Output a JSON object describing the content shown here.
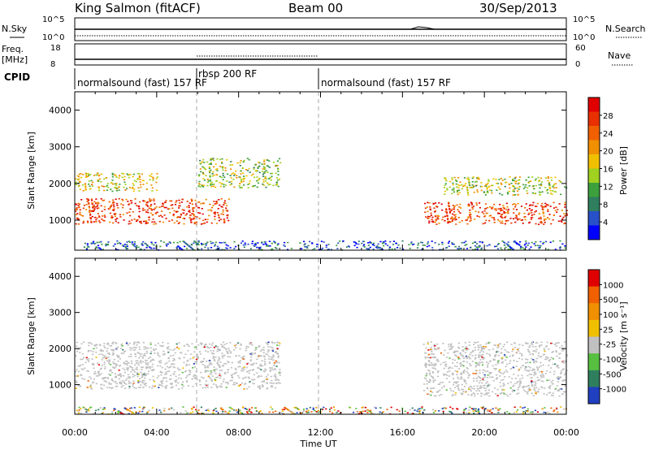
{
  "header": {
    "station": "King Salmon (fitACF)",
    "beam": "Beam 00",
    "date": "30/Sep/2013"
  },
  "strip_noise": {
    "left_label": "N.Sky",
    "right_label": "N.Search",
    "tick_top": "10^5",
    "tick_bottom": "10^0"
  },
  "strip_freq": {
    "left_label_1": "Freq.",
    "left_label_2": "[MHz]",
    "left_ticks": [
      "18",
      "8"
    ],
    "right_label": "Nave",
    "right_ticks": [
      "60",
      "0"
    ]
  },
  "cpid": {
    "label": "CPID",
    "segments": [
      {
        "text": "normalsound (fast) 157 RF",
        "start_hour": 0
      },
      {
        "text": "rbsp 200 RF",
        "start_hour": 6
      },
      {
        "text": "normalsound (fast) 157 RF",
        "start_hour": 12
      }
    ]
  },
  "axis": {
    "ylabel": "Slant Range [km]",
    "yticks": [
      1000,
      2000,
      3000,
      4000
    ],
    "xlabel": "Time UT",
    "xticks": [
      "00:00",
      "04:00",
      "08:00",
      "12:00",
      "16:00",
      "20:00",
      "00:00"
    ]
  },
  "colorbars": {
    "power": {
      "label": "Power [dB]",
      "ticks": [
        "28",
        "24",
        "20",
        "16",
        "12",
        "8",
        "4"
      ],
      "colors": [
        "#0000ff",
        "#2850c8",
        "#2f7f5f",
        "#3ca03c",
        "#a0d020",
        "#f0c000",
        "#f09000",
        "#f06000",
        "#e83000",
        "#e00000"
      ]
    },
    "velocity": {
      "label": "Velocity [m s⁻¹]",
      "ticks": [
        "1000",
        "500",
        "100",
        "25",
        "-25",
        "-100",
        "-500",
        "-1000"
      ],
      "colors": [
        "#2040c0",
        "#2f7f5f",
        "#58c040",
        "#c0c0c0",
        "#f0c000",
        "#f09000",
        "#f06000",
        "#e00000"
      ]
    }
  },
  "chart_data": {
    "type": "heatmap",
    "x_range_hours": [
      0,
      24
    ],
    "y_range_km": [
      180,
      4500
    ],
    "power_panel": {
      "regions": [
        {
          "name": "",
          "hours": [
            0,
            7.5
          ],
          "range_km": [
            900,
            1600
          ],
          "power_db": 26
        },
        {
          "name": "",
          "hours": [
            0,
            4
          ],
          "range_km": [
            1800,
            2300
          ],
          "power_db": 16
        },
        {
          "name": "",
          "hours": [
            6,
            10
          ],
          "range_km": [
            1900,
            2700
          ],
          "power_db": 14
        },
        {
          "name": "",
          "hours": [
            17,
            24
          ],
          "range_km": [
            900,
            1500
          ],
          "power_db": 25
        },
        {
          "name": "",
          "hours": [
            18,
            24
          ],
          "range_km": [
            1700,
            2200
          ],
          "power_db": 15
        },
        {
          "name": "",
          "hours": [
            0,
            24
          ],
          "range_km": [
            200,
            450
          ],
          "power_db": 6
        }
      ]
    },
    "velocity_panel": {
      "regions": [
        {
          "name": "",
          "hours": [
            0,
            10
          ],
          "range_km": [
            900,
            2200
          ],
          "velocity_ms": 0
        },
        {
          "name": "",
          "hours": [
            17,
            24
          ],
          "range_km": [
            700,
            2200
          ],
          "velocity_ms": 0
        },
        {
          "name": "",
          "hours": [
            0,
            24
          ],
          "range_km": [
            200,
            400
          ],
          "velocity_ms": 150
        }
      ]
    }
  }
}
